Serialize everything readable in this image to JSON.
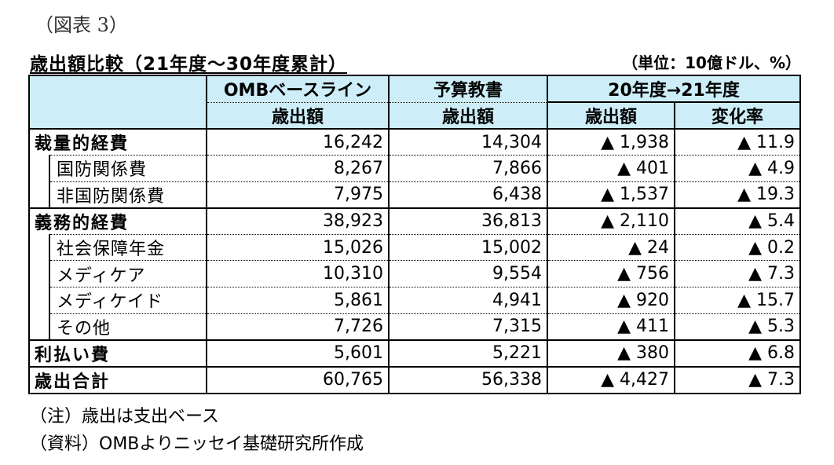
{
  "figure_label": "（図表 3）",
  "title": "歳出額比較（21年度～30年度累計）",
  "unit": "（単位：10億ドル、%）",
  "headers": {
    "col1_top": "OMBベースライン",
    "col1_bottom": "歳出額",
    "col2_top": "予算教書",
    "col2_bottom": "歳出額",
    "group": "20年度→21年度",
    "col3_bottom": "歳出額",
    "col4_bottom": "変化率"
  },
  "rows": [
    {
      "label": "裁量的経費",
      "level": "category",
      "omb": "16,242",
      "budget": "14,304",
      "diff": "▲ 1,938",
      "rate": "▲ 11.9"
    },
    {
      "label": "国防関係費",
      "level": "sub",
      "omb": "8,267",
      "budget": "7,866",
      "diff": "▲ 401",
      "rate": "▲ 4.9"
    },
    {
      "label": "非国防関係費",
      "level": "sub",
      "omb": "7,975",
      "budget": "6,438",
      "diff": "▲ 1,537",
      "rate": "▲ 19.3"
    },
    {
      "label": "義務的経費",
      "level": "category",
      "omb": "38,923",
      "budget": "36,813",
      "diff": "▲ 2,110",
      "rate": "▲ 5.4"
    },
    {
      "label": "社会保障年金",
      "level": "sub",
      "omb": "15,026",
      "budget": "15,002",
      "diff": "▲ 24",
      "rate": "▲ 0.2"
    },
    {
      "label": "メディケア",
      "level": "sub",
      "omb": "10,310",
      "budget": "9,554",
      "diff": "▲ 756",
      "rate": "▲ 7.3"
    },
    {
      "label": "メディケイド",
      "level": "sub",
      "omb": "5,861",
      "budget": "4,941",
      "diff": "▲ 920",
      "rate": "▲ 15.7"
    },
    {
      "label": "その他",
      "level": "sub",
      "omb": "7,726",
      "budget": "7,315",
      "diff": "▲ 411",
      "rate": "▲ 5.3"
    },
    {
      "label": "利払い費",
      "level": "category",
      "omb": "5,601",
      "budget": "5,221",
      "diff": "▲ 380",
      "rate": "▲ 6.8"
    },
    {
      "label": "歳出合計",
      "level": "category",
      "omb": "60,765",
      "budget": "56,338",
      "diff": "▲ 4,427",
      "rate": "▲ 7.3"
    }
  ],
  "notes": {
    "note1": "（注）歳出は支出ベース",
    "note2": "（資料）OMBよりニッセイ基礎研究所作成"
  }
}
